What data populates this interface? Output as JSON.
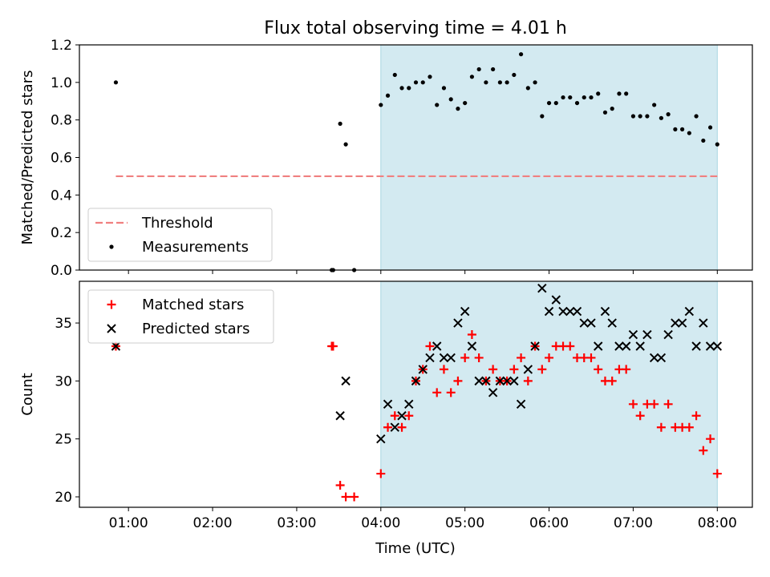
{
  "title": "Flux total observing time = 4.01 h",
  "x_axis": {
    "label": "Time (UTC)",
    "tick_labels": [
      "01:00",
      "02:00",
      "03:00",
      "04:00",
      "05:00",
      "06:00",
      "07:00",
      "08:00"
    ],
    "tick_values": [
      60,
      120,
      180,
      240,
      300,
      360,
      420,
      480
    ],
    "range": [
      25,
      505
    ]
  },
  "observing_window": {
    "start": 240,
    "end": 480,
    "color": "#d3eaf1"
  },
  "chart_data": [
    {
      "type": "scatter",
      "panel": "top",
      "ylabel": "Matched/Predicted stars",
      "ylim": [
        0,
        1.2
      ],
      "ytick_labels": [
        "0.0",
        "0.2",
        "0.4",
        "0.6",
        "0.8",
        "1.0",
        "1.2"
      ],
      "ytick_values": [
        0,
        0.2,
        0.4,
        0.6,
        0.8,
        1.0,
        1.2
      ],
      "legend": {
        "position": "lower-left",
        "entries": [
          "Threshold",
          "Measurements"
        ]
      },
      "threshold": {
        "name": "Threshold",
        "y": 0.5,
        "x_range": [
          51,
          480
        ],
        "color": "#f08080",
        "style": "dashed"
      },
      "series": [
        {
          "name": "Measurements",
          "color": "#000000",
          "marker": "dot",
          "x": [
            51,
            205,
            206,
            211,
            215,
            221,
            240,
            245,
            250,
            255,
            260,
            265,
            270,
            275,
            280,
            285,
            290,
            295,
            300,
            305,
            310,
            315,
            320,
            325,
            330,
            335,
            340,
            345,
            350,
            355,
            360,
            365,
            370,
            375,
            380,
            385,
            390,
            395,
            400,
            405,
            410,
            415,
            420,
            425,
            430,
            435,
            440,
            445,
            450,
            455,
            460,
            465,
            470,
            475,
            480
          ],
          "y": [
            1.0,
            0.0,
            0.0,
            0.78,
            0.67,
            0.0,
            0.88,
            0.93,
            1.04,
            0.97,
            0.97,
            1.0,
            1.0,
            1.03,
            0.88,
            0.97,
            0.91,
            0.86,
            0.89,
            1.03,
            1.07,
            1.0,
            1.07,
            1.0,
            1.0,
            1.04,
            1.15,
            0.97,
            1.0,
            0.82,
            0.89,
            0.89,
            0.92,
            0.92,
            0.89,
            0.92,
            0.92,
            0.94,
            0.84,
            0.86,
            0.94,
            0.94,
            0.82,
            0.82,
            0.82,
            0.88,
            0.81,
            0.83,
            0.75,
            0.75,
            0.73,
            0.82,
            0.69,
            0.76,
            0.67
          ]
        }
      ]
    },
    {
      "type": "scatter",
      "panel": "bottom",
      "ylabel": "Count",
      "ylim": [
        19.1,
        38.6
      ],
      "ytick_labels": [
        "20",
        "25",
        "30",
        "35"
      ],
      "ytick_values": [
        20,
        25,
        30,
        35
      ],
      "legend": {
        "position": "upper-left",
        "entries": [
          "Matched stars",
          "Predicted stars"
        ]
      },
      "series": [
        {
          "name": "Matched stars",
          "color": "#ff0000",
          "marker": "plus",
          "x": [
            51,
            205,
            206,
            211,
            215,
            221,
            240,
            245,
            250,
            255,
            260,
            265,
            270,
            275,
            280,
            285,
            290,
            295,
            300,
            305,
            310,
            315,
            320,
            325,
            330,
            335,
            340,
            345,
            350,
            355,
            360,
            365,
            370,
            375,
            380,
            385,
            390,
            395,
            400,
            405,
            410,
            415,
            420,
            425,
            430,
            435,
            440,
            445,
            450,
            455,
            460,
            465,
            470,
            475,
            480
          ],
          "y": [
            33,
            33,
            33,
            21,
            20,
            20,
            22,
            26,
            27,
            26,
            27,
            30,
            31,
            33,
            29,
            31,
            29,
            30,
            32,
            34,
            32,
            30,
            31,
            30,
            30,
            31,
            32,
            30,
            33,
            31,
            32,
            33,
            33,
            33,
            32,
            32,
            32,
            31,
            30,
            30,
            31,
            31,
            28,
            27,
            28,
            28,
            26,
            28,
            26,
            26,
            26,
            27,
            24,
            25,
            22
          ]
        },
        {
          "name": "Predicted stars",
          "color": "#000000",
          "marker": "x",
          "x": [
            51,
            211,
            215,
            240,
            245,
            250,
            255,
            260,
            265,
            270,
            275,
            280,
            285,
            290,
            295,
            300,
            305,
            310,
            315,
            320,
            325,
            330,
            335,
            340,
            345,
            350,
            355,
            360,
            365,
            370,
            375,
            380,
            385,
            390,
            395,
            400,
            405,
            410,
            415,
            420,
            425,
            430,
            435,
            440,
            445,
            450,
            455,
            460,
            465,
            470,
            475,
            480
          ],
          "y": [
            33,
            27,
            30,
            25,
            28,
            26,
            27,
            28,
            30,
            31,
            32,
            33,
            32,
            32,
            35,
            36,
            33,
            30,
            30,
            29,
            30,
            30,
            30,
            28,
            31,
            33,
            38,
            36,
            37,
            36,
            36,
            36,
            35,
            35,
            33,
            36,
            35,
            33,
            33,
            34,
            33,
            34,
            32,
            32,
            34,
            35,
            35,
            36,
            33,
            35,
            33,
            33
          ]
        }
      ]
    }
  ]
}
